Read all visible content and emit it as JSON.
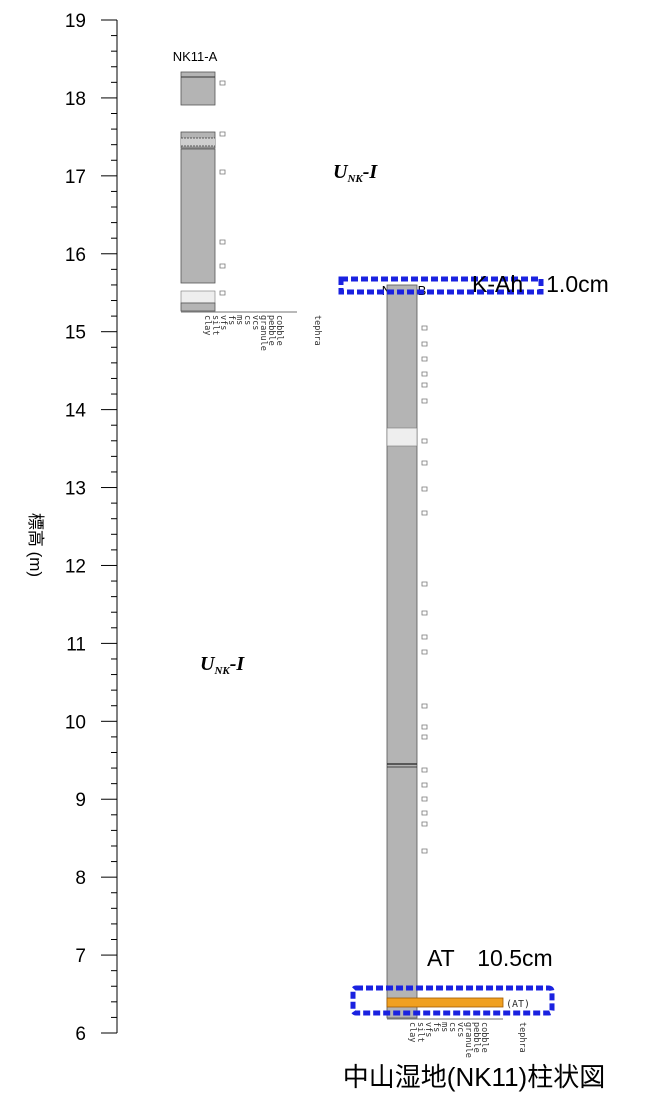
{
  "axis": {
    "label": "標高 (m)",
    "ticks": [
      "19",
      "18",
      "17",
      "16",
      "15",
      "14",
      "13",
      "12",
      "11",
      "10",
      "9",
      "8",
      "7",
      "6"
    ]
  },
  "columns": [
    {
      "name": "NK11-A"
    },
    {
      "name": "NK11-B"
    }
  ],
  "grain_labels": [
    "clay",
    "silt",
    "vfs",
    "fs",
    "ms",
    "cs",
    "vcs",
    "granule",
    "pebble",
    "cobble",
    "tephra"
  ],
  "units": {
    "label_main": "U",
    "label_sub": "NK",
    "label_suffix": "-I"
  },
  "annotations": {
    "kah": "K-Ah　1.0cm",
    "at": "AT　10.5cm",
    "at_tag": "(AT)"
  },
  "caption": "中山湿地(NK11)柱状図",
  "colors": {
    "sediment": "#b4b4b4",
    "light_layer": "#eeeeee",
    "tephra_at": "#f0a020",
    "highlight_box": "#1a22e0"
  }
}
